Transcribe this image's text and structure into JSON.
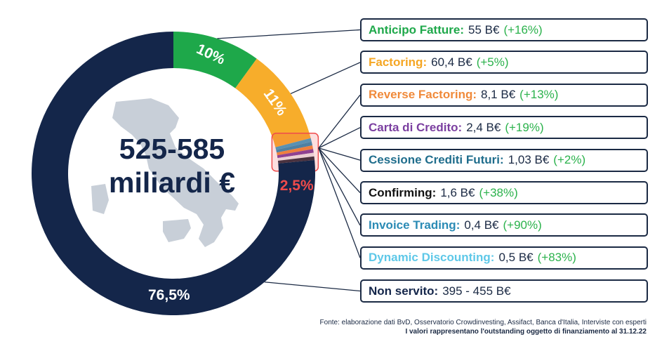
{
  "chart_data": {
    "type": "pie",
    "center_title": [
      "525-585",
      "miliardi €"
    ],
    "slices": [
      {
        "label": "10%",
        "value": 10,
        "color": "#1ea84a",
        "label_color": "#ffffff"
      },
      {
        "label": "11%",
        "value": 11,
        "color": "#f7ad2b",
        "label_color": "#ffffff"
      },
      {
        "label": "2,5%",
        "value": 2.5,
        "color": "#2a3a5c",
        "label_color": "#ef4b4b"
      },
      {
        "label": "76,5%",
        "value": 76.5,
        "color": "#14264a",
        "label_color": "#ffffff"
      }
    ],
    "small_slice_colors": [
      "#3aa0c8",
      "#2b8bb5",
      "#f08a3a",
      "#7b3fa0",
      "#e9e9ef",
      "#262c3c"
    ],
    "callouts": [
      {
        "label": "Anticipo Fatture:",
        "value": "55 B€",
        "change": "(+16%)",
        "color": "#1ea84a"
      },
      {
        "label": "Factoring:",
        "value": "60,4 B€",
        "change": "(+5%)",
        "color": "#f5a623"
      },
      {
        "label": "Reverse Factoring:",
        "value": "8,1 B€",
        "change": "(+13%)",
        "color": "#f08a3a"
      },
      {
        "label": "Carta di Credito:",
        "value": "2,4 B€",
        "change": "(+19%)",
        "color": "#7b3fa0"
      },
      {
        "label": "Cessione Crediti Futuri:",
        "value": "1,03 B€",
        "change": "(+2%)",
        "color": "#1f6d8c"
      },
      {
        "label": "Confirming:",
        "value": "1,6 B€",
        "change": "(+38%)",
        "color": "#111111"
      },
      {
        "label": "Invoice Trading:",
        "value": "0,4 B€",
        "change": "(+90%)",
        "color": "#2b8bb5"
      },
      {
        "label": "Dynamic Discounting:",
        "value": "0,5 B€",
        "change": "(+83%)",
        "color": "#5ec8e8"
      },
      {
        "label": "Non servito:",
        "value": "395 - 455 B€",
        "change": "",
        "color": "#14264a"
      }
    ],
    "footer": [
      "Fonte: elaborazione dati BvD, Osservatorio Crowdinvesting, Assifact, Banca d'Italia, Interviste con esperti",
      "I valori rappresentano l'outstanding oggetto di finanziamento al 31.12.22"
    ]
  }
}
